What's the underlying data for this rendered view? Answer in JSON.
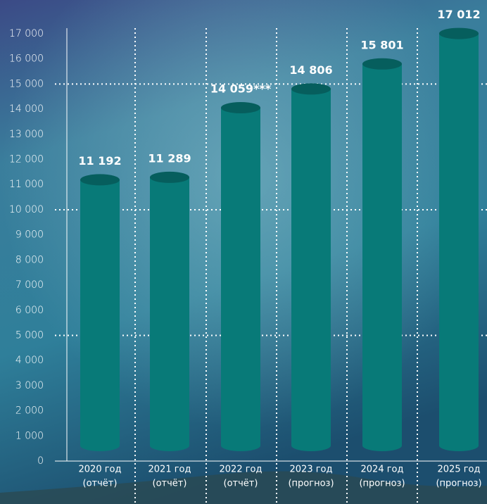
{
  "chart_data": {
    "type": "bar",
    "categories": [
      [
        "2020 год",
        "(отчёт)"
      ],
      [
        "2021 год",
        "(отчёт)"
      ],
      [
        "2022 год",
        "(отчёт)"
      ],
      [
        "2023 год",
        "(прогноз)"
      ],
      [
        "2024 год",
        "(прогноз)"
      ],
      [
        "2025 год",
        "(прогноз)"
      ]
    ],
    "values": [
      11192,
      11289,
      14059,
      14806,
      15801,
      17012
    ],
    "value_labels": [
      "11 192",
      "11 289",
      "14 059***",
      "14 806",
      "15 801",
      "17 012"
    ],
    "color": "#087a78",
    "ylim": [
      0,
      17000
    ],
    "yticks": [
      0,
      {
        "value": 1000,
        "label": "1 000"
      },
      {
        "value": 2000,
        "label": "2 000"
      },
      {
        "value": 3000,
        "label": "3 000"
      },
      {
        "value": 4000,
        "label": "4 000"
      },
      {
        "value": 5000,
        "label": "5 000"
      },
      {
        "value": 6000,
        "label": "6 000"
      },
      {
        "value": 7000,
        "label": "7 000"
      },
      {
        "value": 8000,
        "label": "8 000"
      },
      {
        "value": 9000,
        "label": "9 000"
      },
      {
        "value": 10000,
        "label": "10 000"
      },
      {
        "value": 11000,
        "label": "11 000"
      },
      {
        "value": 12000,
        "label": "12 000"
      },
      {
        "value": 13000,
        "label": "13 000"
      },
      {
        "value": 14000,
        "label": "14 000"
      },
      {
        "value": 15000,
        "label": "15 000"
      },
      {
        "value": 16000,
        "label": "16 000"
      },
      {
        "value": 17000,
        "label": "17 000"
      }
    ],
    "ygrid": [
      5000,
      10000,
      15000
    ]
  }
}
